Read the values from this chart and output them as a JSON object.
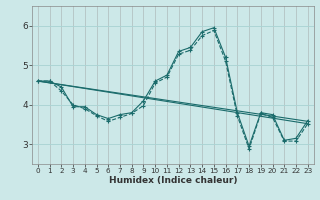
{
  "title": "",
  "xlabel": "Humidex (Indice chaleur)",
  "bg_color": "#cce8e8",
  "line_color": "#1a6b6b",
  "grid_color_major": "#aad4d4",
  "grid_color_minor": "#c0e0e0",
  "xlim": [
    -0.5,
    23.5
  ],
  "ylim": [
    2.5,
    6.5
  ],
  "yticks": [
    3,
    4,
    5,
    6
  ],
  "xticks": [
    0,
    1,
    2,
    3,
    4,
    5,
    6,
    7,
    8,
    9,
    10,
    11,
    12,
    13,
    14,
    15,
    16,
    17,
    18,
    19,
    20,
    21,
    22,
    23
  ],
  "series": [
    {
      "x": [
        0,
        1,
        2,
        3,
        4,
        5,
        6,
        7,
        8,
        9,
        10,
        11,
        12,
        13,
        14,
        15,
        16,
        17,
        18,
        19,
        20,
        21,
        22,
        23
      ],
      "y": [
        4.6,
        4.6,
        4.45,
        3.95,
        3.95,
        3.75,
        3.65,
        3.75,
        3.8,
        4.1,
        4.6,
        4.75,
        5.35,
        5.45,
        5.85,
        5.95,
        5.2,
        3.8,
        2.95,
        3.8,
        3.75,
        3.1,
        3.15,
        3.6
      ],
      "marker": true,
      "dashed": false
    },
    {
      "x": [
        0,
        1,
        2,
        3,
        4,
        5,
        6,
        7,
        8,
        9,
        10,
        11,
        12,
        13,
        14,
        15,
        16,
        17,
        18,
        19,
        20,
        21,
        22,
        23
      ],
      "y": [
        4.6,
        4.6,
        4.35,
        4.0,
        3.9,
        3.72,
        3.58,
        3.68,
        3.78,
        3.98,
        4.55,
        4.7,
        5.28,
        5.38,
        5.75,
        5.88,
        5.1,
        3.72,
        2.88,
        3.78,
        3.68,
        3.08,
        3.08,
        3.52
      ],
      "marker": true,
      "dashed": true
    },
    {
      "x": [
        0,
        23
      ],
      "y": [
        4.6,
        3.58
      ],
      "marker": false,
      "dashed": false
    },
    {
      "x": [
        0,
        23
      ],
      "y": [
        4.6,
        3.52
      ],
      "marker": false,
      "dashed": false
    }
  ]
}
